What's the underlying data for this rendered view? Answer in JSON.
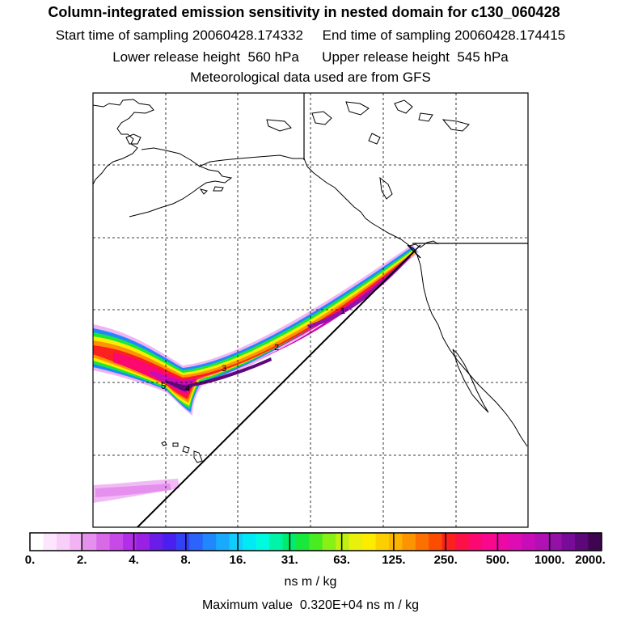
{
  "header": {
    "title": "Column-integrated emission sensitivity in nested domain for c130_060428",
    "line1": "Start time of sampling 20060428.174332     End time of sampling 20060428.174415",
    "line2": "Lower release height  560 hPa      Upper release height  545 hPa",
    "line3": "Meteorological data used are from GFS"
  },
  "map": {
    "plume_day_labels": [
      "1",
      "2",
      "3",
      "4",
      "5"
    ]
  },
  "colorbar": {
    "labels": [
      "0.",
      "2.",
      "4.",
      "8.",
      "16.",
      "31.",
      "63.",
      "125.",
      "250.",
      "500.",
      "1000.",
      "2000."
    ],
    "colors": [
      "#ffffff",
      "#fde6fd",
      "#f8cff8",
      "#f1b3f4",
      "#e590ee",
      "#d86ae8",
      "#c74ae8",
      "#b22ee8",
      "#9920e4",
      "#6a1ce8",
      "#4a20f0",
      "#3440f6",
      "#2a64fa",
      "#2088fc",
      "#18aafc",
      "#12ccfc",
      "#00eaf4",
      "#00fae0",
      "#00f4a8",
      "#00ec70",
      "#18e83c",
      "#48ec20",
      "#88f014",
      "#bef010",
      "#e8f00c",
      "#fcec00",
      "#fcd000",
      "#fcb400",
      "#fc9400",
      "#fc7000",
      "#fc4c00",
      "#fc2020",
      "#fc1048",
      "#fc0870",
      "#f8088c",
      "#ee08a4",
      "#de0cb4",
      "#c80cb8",
      "#b010b4",
      "#9410a8",
      "#780c98",
      "#5c0878",
      "#3e0650"
    ],
    "units": "ns m / kg",
    "max_value": "Maximum value  0.320E+04 ns m / kg"
  }
}
